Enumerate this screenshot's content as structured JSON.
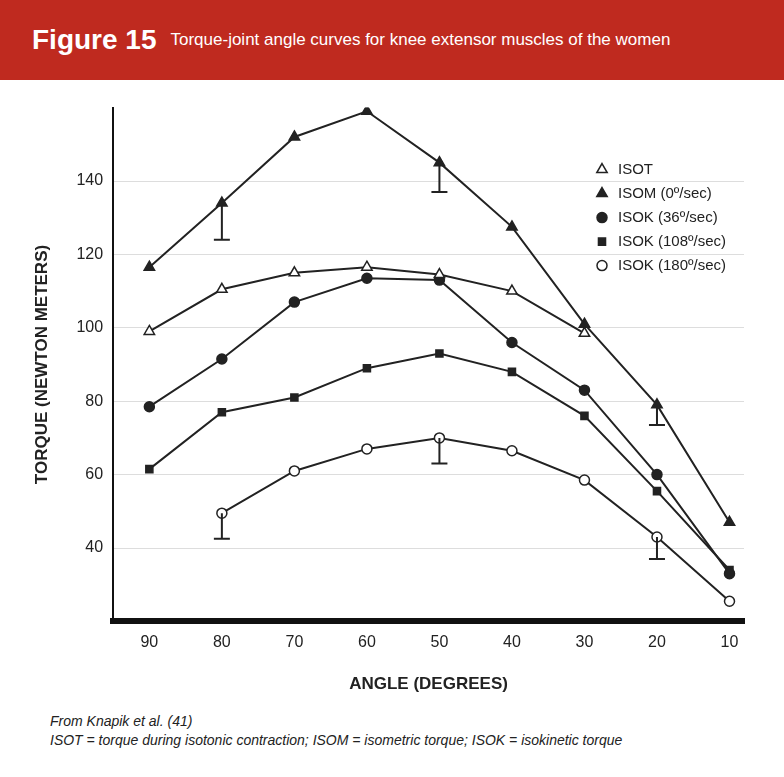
{
  "chart_data": {
    "type": "line",
    "title": "Figure 15",
    "subtitle": "Torque-joint angle curves for knee extensor muscles of the women",
    "x_label": "ANGLE (DEGREES)",
    "y_label": "TORQUE (NEWTON METERS)",
    "x": [
      90,
      80,
      70,
      60,
      50,
      40,
      30,
      20,
      10
    ],
    "xlim": [
      95,
      8
    ],
    "xticks": [
      90,
      80,
      70,
      60,
      50,
      40,
      30,
      20,
      10
    ],
    "ylim": [
      20,
      160
    ],
    "yticks": [
      40,
      60,
      80,
      100,
      120,
      140
    ],
    "grid": "y",
    "legend": "top right",
    "series": [
      {
        "name": "ISOT",
        "color": "#222222",
        "marker": "triangle-open",
        "values": [
          99,
          110.5,
          115,
          116.5,
          114.5,
          110,
          98.5,
          null,
          null
        ]
      },
      {
        "name": "ISOM (0º/sec)",
        "color": "#222222",
        "marker": "triangle",
        "values": [
          116.5,
          134,
          152,
          159,
          145,
          127.5,
          101,
          79,
          47
        ],
        "error_lower": [
          null,
          10,
          null,
          null,
          8,
          null,
          null,
          5.5,
          null
        ]
      },
      {
        "name": "ISOK (36º/sec)",
        "color": "#222222",
        "marker": "circle",
        "values": [
          78.5,
          91.5,
          107,
          113.5,
          113,
          96,
          83,
          60,
          33
        ]
      },
      {
        "name": "ISOK (108º/sec)",
        "color": "#222222",
        "marker": "square",
        "values": [
          61.5,
          77,
          81,
          89,
          93,
          88,
          76,
          55.5,
          34
        ]
      },
      {
        "name": "ISOK (180º/sec)",
        "color": "#222222",
        "marker": "circle-open",
        "values": [
          null,
          49.5,
          61,
          67,
          70,
          66.5,
          58.5,
          43,
          25.5
        ],
        "error_lower": [
          null,
          7,
          null,
          null,
          7,
          null,
          null,
          6,
          null
        ]
      }
    ],
    "annotations": [
      "From Knapik et al. (41)",
      "ISOT = torque during isotonic contraction; ISOM = isometric torque; ISOK = isokinetic torque"
    ]
  }
}
